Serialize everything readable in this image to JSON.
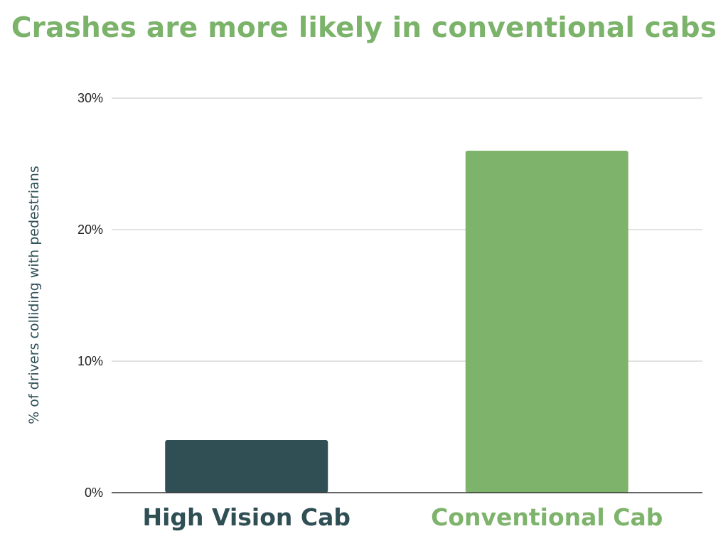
{
  "chart_data": {
    "type": "bar",
    "title": "Crashes are more likely in conventional cabs",
    "xlabel": "",
    "ylabel": "% of drivers colliding with pedestrians",
    "categories": [
      "High Vision Cab",
      "Conventional Cab"
    ],
    "values": [
      4,
      26
    ],
    "value_unit": "%",
    "ylim": [
      0,
      30
    ],
    "yticks": [
      0,
      10,
      20,
      30
    ],
    "ytick_labels": [
      "0%",
      "10%",
      "20%",
      "30%"
    ],
    "grid": true,
    "legend": "none"
  },
  "colors": {
    "title": "#7cb36a",
    "ylabel": "#2f5058",
    "grid": "#d0d0d0",
    "axis": "#333333",
    "bars": [
      "#2f4f55",
      "#7db36a"
    ],
    "category_labels": [
      "#2f4f55",
      "#7db36a"
    ]
  }
}
